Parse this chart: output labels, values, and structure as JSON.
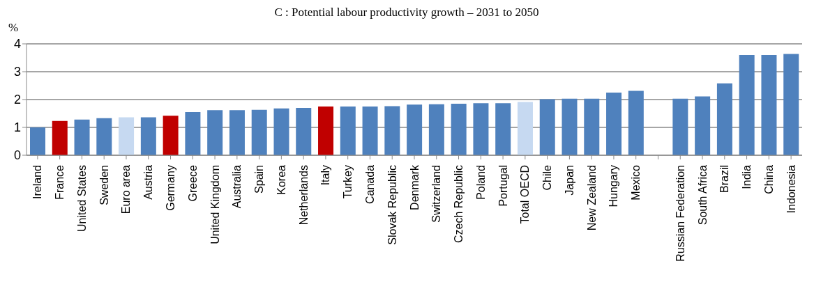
{
  "chart_data": {
    "type": "bar",
    "title": "C : Potential labour productivity growth – 2031 to 2050",
    "ylabel": "%",
    "categories": [
      "Ireland",
      "France",
      "United States",
      "Sweden",
      "Euro area",
      "Austria",
      "Germany",
      "Greece",
      "United Kingdom",
      "Australia",
      "Spain",
      "Korea",
      "Netherlands",
      "Italy",
      "Turkey",
      "Canada",
      "Slovak Republic",
      "Denmark",
      "Switzerland",
      "Czech Republic",
      "Poland",
      "Portugal",
      "Total OECD",
      "Chile",
      "Japan",
      "New Zealand",
      "Hungary",
      "Mexico",
      null,
      "Russian Federation",
      "South Africa",
      "Brazil",
      "India",
      "China",
      "Indonesia"
    ],
    "values": [
      1.0,
      1.23,
      1.28,
      1.33,
      1.36,
      1.36,
      1.42,
      1.55,
      1.62,
      1.62,
      1.63,
      1.68,
      1.7,
      1.75,
      1.75,
      1.75,
      1.76,
      1.82,
      1.83,
      1.85,
      1.87,
      1.87,
      1.91,
      2.01,
      2.03,
      2.03,
      2.25,
      2.31,
      null,
      2.03,
      2.11,
      2.58,
      3.6,
      3.6,
      3.64
    ],
    "colors": [
      "#4f81bd",
      "#c00000",
      "#4f81bd",
      "#4f81bd",
      "#c6d9f1",
      "#4f81bd",
      "#c00000",
      "#4f81bd",
      "#4f81bd",
      "#4f81bd",
      "#4f81bd",
      "#4f81bd",
      "#4f81bd",
      "#c00000",
      "#4f81bd",
      "#4f81bd",
      "#4f81bd",
      "#4f81bd",
      "#4f81bd",
      "#4f81bd",
      "#4f81bd",
      "#4f81bd",
      "#c6d9f1",
      "#4f81bd",
      "#4f81bd",
      "#4f81bd",
      "#4f81bd",
      "#4f81bd",
      "#4f81bd",
      "#4f81bd",
      "#4f81bd",
      "#4f81bd",
      "#4f81bd",
      "#4f81bd",
      "#4f81bd"
    ],
    "ylim": [
      0,
      4
    ],
    "yticks": [
      0,
      1,
      2,
      3,
      4
    ],
    "grid": "y",
    "legend": false
  }
}
